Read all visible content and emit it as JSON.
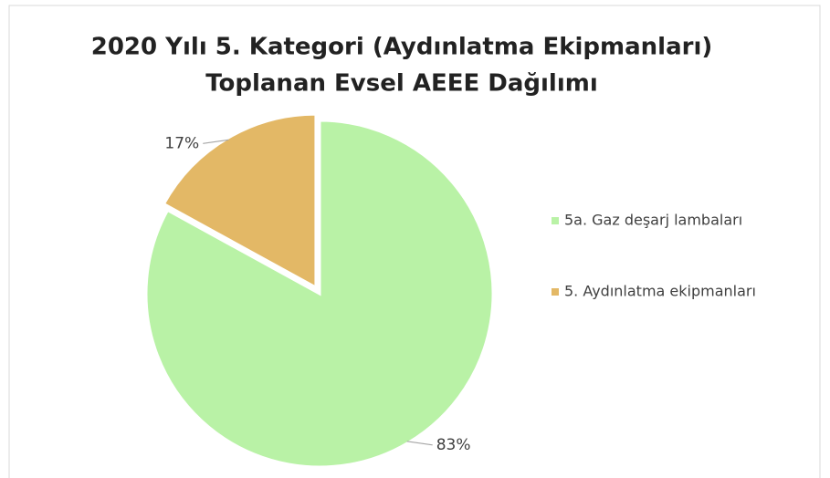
{
  "chart_data": {
    "type": "pie",
    "title": [
      "2020 Yılı 5. Kategori (Aydınlatma Ekipmanları)",
      "Toplanan Evsel AEEE Dağılımı"
    ],
    "categories": [
      "5a. Gaz deşarj lambaları",
      "5. Aydınlatma ekipmanları"
    ],
    "values": [
      83,
      17
    ],
    "value_labels": [
      "83%",
      "17%"
    ],
    "colors": [
      "#b9f2a6",
      "#e3b866"
    ],
    "legend": "right"
  }
}
